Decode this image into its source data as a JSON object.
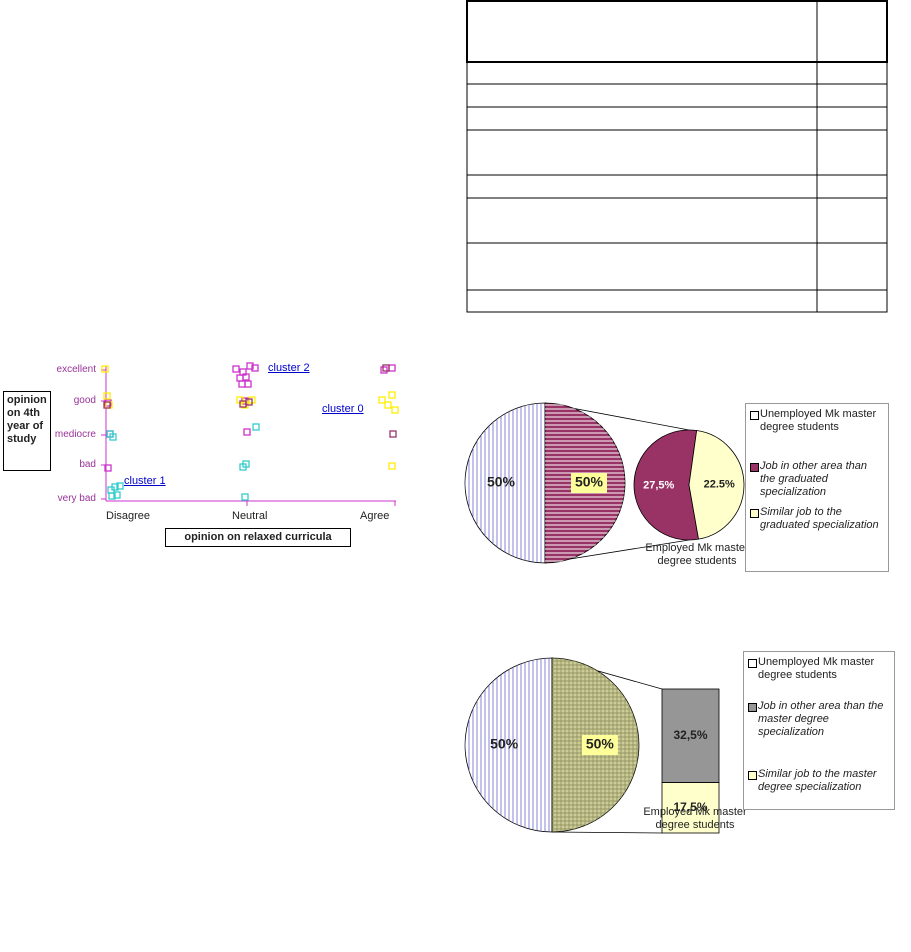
{
  "cluster_plot": {
    "y_title": "opinion on 4th year of study",
    "x_title": "opinion on relaxed curricula",
    "y_categories": [
      "excellent",
      "good",
      "mediocre",
      "bad",
      "very bad"
    ],
    "x_categories": [
      "Disagree",
      "Neutral",
      "Agree"
    ],
    "cluster_labels": [
      "cluster 2",
      "cluster 0",
      "cluster 1"
    ]
  },
  "chart_data": [
    {
      "type": "pie-of-pie",
      "categories": [
        "Unemployed Mk master degree students",
        "Employed Mk master degree students"
      ],
      "values": [
        50,
        50
      ],
      "value_labels": [
        "50%",
        "50%"
      ],
      "colors": [
        "#ffffff",
        "#993366"
      ],
      "patterns": [
        "vertical",
        "horizontal"
      ],
      "secondary": {
        "categories": [
          "Job in other area than the graduated specialization",
          "Similar job to the graduated specialization"
        ],
        "values": [
          27.5,
          22.5
        ],
        "value_labels": [
          "27,5%",
          "22.5%"
        ],
        "colors": [
          "#993366",
          "#ffffcc"
        ]
      }
    },
    {
      "type": "bar-of-pie",
      "categories": [
        "Unemployed Mk master degree students",
        "Employed Mk master degree students"
      ],
      "values": [
        50,
        50
      ],
      "value_labels": [
        "50%",
        "50%"
      ],
      "colors": [
        "#ffffff",
        "#cccc99"
      ],
      "patterns": [
        "vertical",
        "grid"
      ],
      "secondary": {
        "categories": [
          "Job in other area than the master degree specialization",
          "Similar job to the master degree specialization"
        ],
        "values": [
          32.5,
          17.5
        ],
        "value_labels": [
          "32,5%",
          "17,5%"
        ],
        "colors": [
          "#969696",
          "#ffffcc"
        ]
      }
    }
  ]
}
